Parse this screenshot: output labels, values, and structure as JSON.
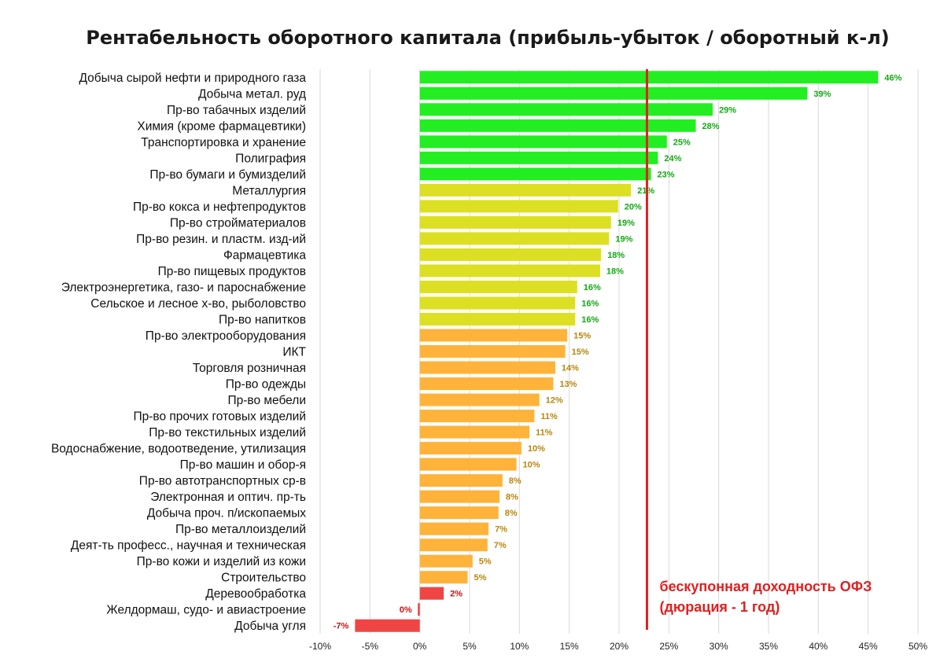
{
  "chart_data": {
    "type": "bar",
    "orientation": "horizontal",
    "title": "Рентабельность оборотного капитала (прибыль-убыток / оборотный к-л)",
    "xlim": [
      -10,
      50
    ],
    "xticks": [
      "-10%",
      "-5%",
      "0%",
      "5%",
      "10%",
      "15%",
      "20%",
      "25%",
      "30%",
      "35%",
      "40%",
      "45%",
      "50%"
    ],
    "xtick_values": [
      -10,
      -5,
      0,
      5,
      10,
      15,
      20,
      25,
      30,
      35,
      40,
      45,
      50
    ],
    "grid": "vertical",
    "categories": [
      "Добыча сырой нефти и природного газа",
      "Добыча метал. руд",
      "Пр-во табачных изделий",
      "Химия (кроме фармацевтики)",
      "Транспортировка и хранение",
      "Полиграфия",
      "Пр-во бумаги и бумизделий",
      "Металлургия",
      "Пр-во кокса и нефтепродуктов",
      "Пр-во стройматериалов",
      "Пр-во резин. и пластм. изд-ий",
      "Фармацевтика",
      "Пр-во пищевых продуктов",
      "Электроэнергетика, газо- и пароснабжение",
      "Сельское и лесное х-во, рыболовство",
      "Пр-во напитков",
      "Пр-во электрооборудования",
      "ИКТ",
      "Торговля розничная",
      "Пр-во одежды",
      "Пр-во мебели",
      "Пр-во прочих готовых изделий",
      "Пр-во текстильных изделий",
      "Водоснабжение, водоотведение, утилизация",
      "Пр-во машин и обор-я",
      "Пр-во автотранспортных ср-в",
      "Электронная и оптич. пр-ть",
      "Добыча проч. п/ископаемых",
      "Пр-во металлоизделий",
      "Деят-ть професс., научная и техническая",
      "Пр-во кожи и изделий из кожи",
      "Строительство",
      "Деревообработка",
      "Желдормаш, судо- и авиастроение",
      "Добыча угля"
    ],
    "values": [
      46,
      38.9,
      29.4,
      27.7,
      24.8,
      23.9,
      23.2,
      21.2,
      19.9,
      19.2,
      19.0,
      18.2,
      18.1,
      15.8,
      15.6,
      15.6,
      14.8,
      14.6,
      13.6,
      13.4,
      12.0,
      11.5,
      11.0,
      10.2,
      9.7,
      8.3,
      8.0,
      7.9,
      6.9,
      6.8,
      5.3,
      4.8,
      2.4,
      -0.2,
      -6.5
    ],
    "labels": [
      "46%",
      "39%",
      "29%",
      "28%",
      "25%",
      "24%",
      "23%",
      "21%",
      "20%",
      "19%",
      "19%",
      "18%",
      "18%",
      "16%",
      "16%",
      "16%",
      "15%",
      "15%",
      "14%",
      "13%",
      "12%",
      "11%",
      "11%",
      "10%",
      "10%",
      "8%",
      "8%",
      "8%",
      "7%",
      "7%",
      "5%",
      "5%",
      "2%",
      "0%",
      "-7%"
    ],
    "groups": [
      "top",
      "top",
      "top",
      "top",
      "top",
      "top",
      "top",
      "upper",
      "upper",
      "upper",
      "upper",
      "upper",
      "upper",
      "upper",
      "upper",
      "upper",
      "mid",
      "mid",
      "mid",
      "mid",
      "mid",
      "mid",
      "mid",
      "mid",
      "mid",
      "mid",
      "mid",
      "mid",
      "mid",
      "mid",
      "mid",
      "mid",
      "low",
      "low",
      "low"
    ],
    "colors": {
      "top": {
        "bar": "#22ee22",
        "label": "#11aa11"
      },
      "upper": {
        "bar": "#dde022",
        "label": "#11aa11"
      },
      "mid": {
        "bar": "#ffb33a",
        "label": "#b8860b"
      },
      "low": {
        "bar": "#f04545",
        "label": "#cc1111"
      }
    },
    "reference_line": {
      "value": 22.8,
      "color": "#e02020",
      "annotation": [
        "бескупонная доходность ОФЗ",
        "(дюрация - 1 год)"
      ]
    }
  }
}
